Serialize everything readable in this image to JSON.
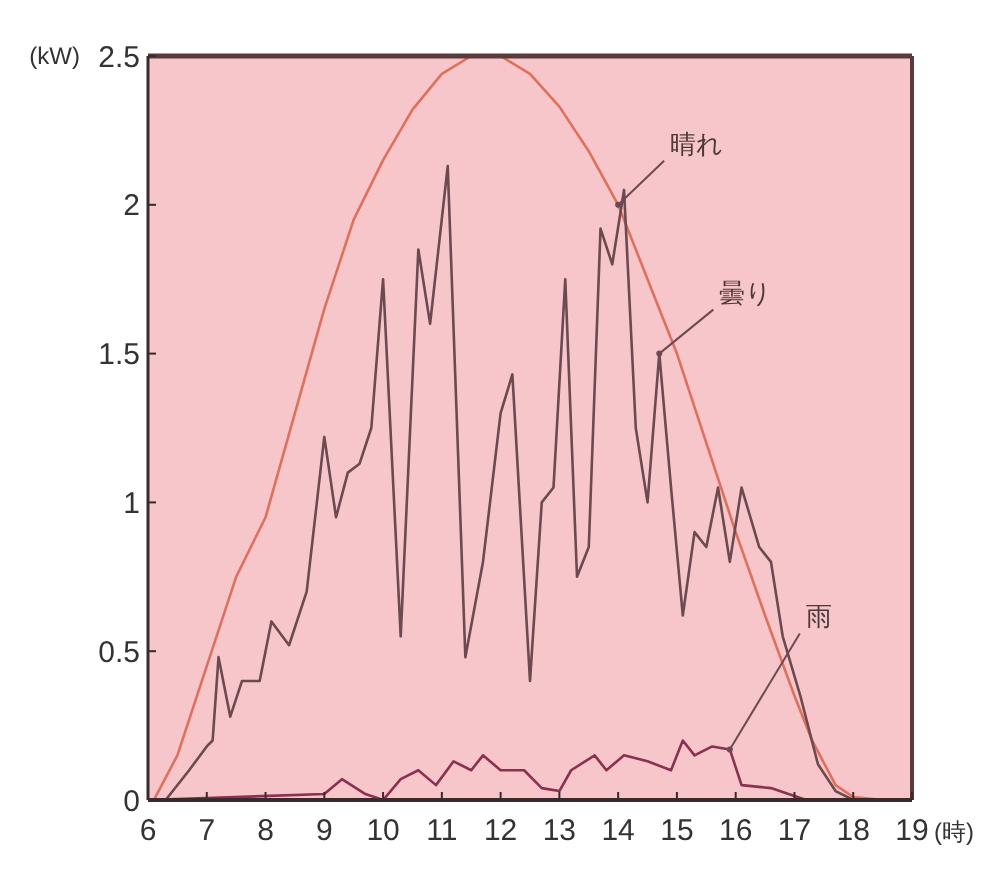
{
  "chart_data": {
    "type": "line",
    "xlabel": "(時)",
    "ylabel": "(kW)",
    "xlim": [
      6,
      19
    ],
    "xticks": [
      6,
      7,
      8,
      9,
      10,
      11,
      12,
      13,
      14,
      15,
      16,
      17,
      18,
      19
    ],
    "ylim": [
      0,
      2.5
    ],
    "yticks": [
      0,
      0.5,
      1,
      1.5,
      2,
      2.5
    ],
    "marker": "none",
    "line_style": "solid",
    "series": [
      {
        "name": "晴れ",
        "color": "#e0705a",
        "x": [
          6.1,
          6.5,
          7,
          7.5,
          8,
          8.5,
          9,
          9.5,
          10,
          10.5,
          11,
          11.5,
          12,
          12.5,
          13,
          13.5,
          14,
          14.5,
          15,
          15.5,
          16,
          16.5,
          17,
          17.3,
          17.7,
          18,
          18.5
        ],
        "values": [
          0,
          0.15,
          0.45,
          0.75,
          0.95,
          1.3,
          1.65,
          1.95,
          2.15,
          2.32,
          2.44,
          2.5,
          2.5,
          2.44,
          2.33,
          2.18,
          2,
          1.75,
          1.5,
          1.2,
          0.9,
          0.62,
          0.35,
          0.2,
          0.05,
          0.01,
          0
        ]
      },
      {
        "name": "曇り",
        "color": "#6b4a50",
        "x": [
          6.3,
          6.7,
          7,
          7.1,
          7.2,
          7.4,
          7.6,
          7.9,
          8.1,
          8.4,
          8.7,
          9,
          9.2,
          9.4,
          9.6,
          9.8,
          10,
          10.3,
          10.6,
          10.8,
          11.1,
          11.4,
          11.7,
          12,
          12.2,
          12.5,
          12.7,
          12.9,
          13.1,
          13.3,
          13.5,
          13.7,
          13.9,
          14.1,
          14.3,
          14.5,
          14.7,
          14.9,
          15.1,
          15.3,
          15.5,
          15.7,
          15.9,
          16.1,
          16.4,
          16.6,
          16.8,
          17.1,
          17.4,
          17.7,
          18
        ],
        "values": [
          0,
          0.1,
          0.18,
          0.2,
          0.48,
          0.28,
          0.4,
          0.4,
          0.6,
          0.52,
          0.7,
          1.22,
          0.95,
          1.1,
          1.13,
          1.25,
          1.75,
          0.55,
          1.85,
          1.6,
          2.13,
          0.48,
          0.8,
          1.3,
          1.43,
          0.4,
          1,
          1.05,
          1.75,
          0.75,
          0.85,
          1.92,
          1.8,
          2.05,
          1.25,
          1,
          1.5,
          1.05,
          0.62,
          0.9,
          0.85,
          1.05,
          0.8,
          1.05,
          0.85,
          0.8,
          0.55,
          0.35,
          0.12,
          0.03,
          0
        ]
      },
      {
        "name": "雨",
        "color": "#8b3050",
        "x": [
          6,
          9,
          9.3,
          9.7,
          10,
          10.3,
          10.6,
          10.9,
          11.2,
          11.5,
          11.7,
          12,
          12.4,
          12.7,
          13,
          13.2,
          13.6,
          13.8,
          14.1,
          14.5,
          14.9,
          15.1,
          15.3,
          15.6,
          15.9,
          16.1,
          16.6,
          16.9,
          17.2
        ],
        "values": [
          0,
          0.02,
          0.07,
          0.02,
          0,
          0.07,
          0.1,
          0.05,
          0.13,
          0.1,
          0.15,
          0.1,
          0.1,
          0.04,
          0.03,
          0.1,
          0.15,
          0.1,
          0.15,
          0.13,
          0.1,
          0.2,
          0.15,
          0.18,
          0.17,
          0.05,
          0.04,
          0.02,
          0
        ]
      }
    ]
  }
}
